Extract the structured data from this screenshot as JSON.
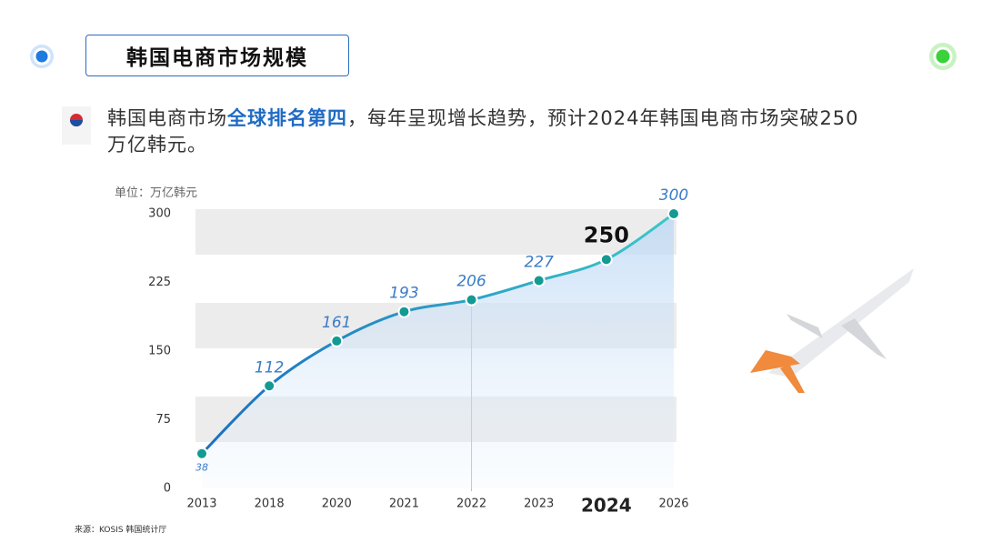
{
  "header": {
    "title": "韩国电商市场规模"
  },
  "description": {
    "parts": [
      "韩国电商市场",
      "全球排名第四",
      "，每年呈现增长趋势，预计2024年韩国电商市场突破250万亿韩元。"
    ]
  },
  "source": "来源：KOSIS 韩国统计厅",
  "chart_data": {
    "type": "line",
    "unit_label": "单位：万亿韩元",
    "categories": [
      "2013",
      "2018",
      "2020",
      "2021",
      "2022",
      "2023",
      "2024",
      "2026"
    ],
    "values": [
      38,
      112,
      161,
      193,
      206,
      227,
      250,
      300
    ],
    "ylim": [
      0,
      300
    ],
    "yticks": [
      0,
      75,
      150,
      225,
      300
    ],
    "color": "#1f7fc9",
    "highlight_index": 6
  }
}
